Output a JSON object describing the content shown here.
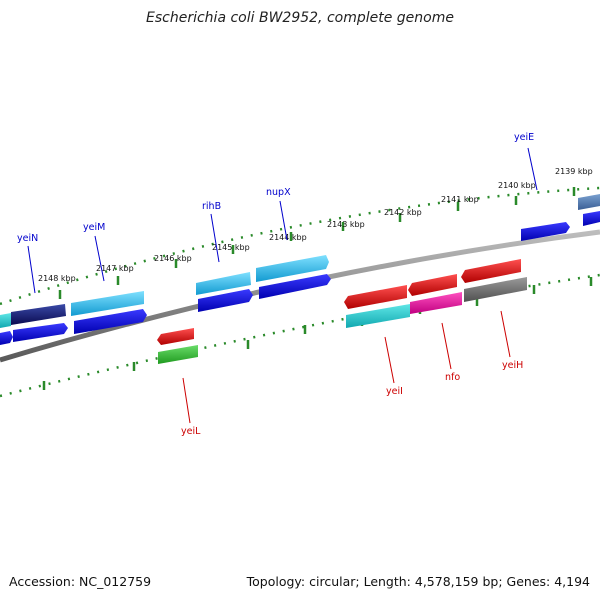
{
  "title": "Escherichia coli BW2952, complete genome",
  "footer": {
    "accession": "Accession: NC_012759",
    "topology": "Topology: circular; Length: 4,578,159 bp; Genes: 4,194"
  },
  "colors": {
    "backbone": "#808080",
    "ticks": "#2a8a2a",
    "forward_label": "#0000cc",
    "reverse_label": "#cc0000"
  },
  "kbp_ticks": [
    "2139 kbp",
    "2140 kbp",
    "2141 kbp",
    "2142 kbp",
    "2143 kbp",
    "2144 kbp",
    "2145 kbp",
    "2146 kbp",
    "2147 kbp",
    "2148 kbp"
  ],
  "genes": [
    {
      "name": "yeiE",
      "strand": "forward"
    },
    {
      "name": "nupX",
      "strand": "forward"
    },
    {
      "name": "rihB",
      "strand": "forward"
    },
    {
      "name": "yeiM",
      "strand": "forward"
    },
    {
      "name": "yeiN",
      "strand": "forward"
    },
    {
      "name": "yeiI",
      "strand": "reverse"
    },
    {
      "name": "nfo",
      "strand": "reverse"
    },
    {
      "name": "yeiH",
      "strand": "reverse"
    },
    {
      "name": "yeiL",
      "strand": "reverse"
    }
  ]
}
